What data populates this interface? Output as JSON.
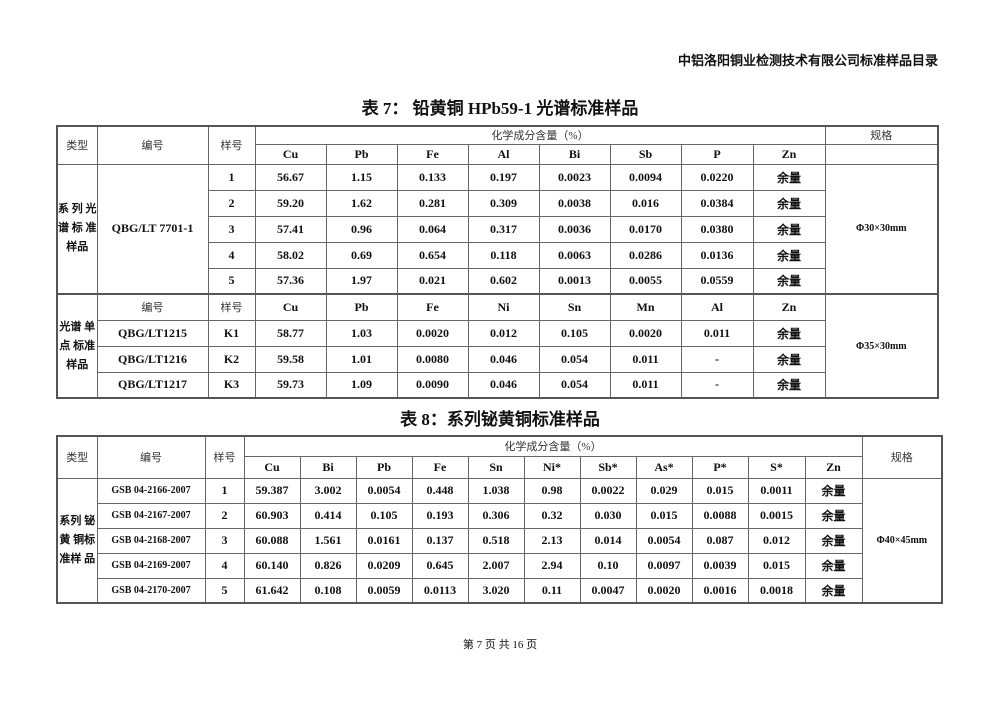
{
  "header": {
    "company": "中铝洛阳铜业检测技术有限公司标准样品目录"
  },
  "table7": {
    "title": "表 7：  铅黄铜 HPb59-1 光谱标准样品",
    "col_type": "类型",
    "col_code": "编号",
    "col_sample": "样号",
    "col_chem": "化学成分含量（%）",
    "col_spec": "规格",
    "section1": {
      "type": "系 列 光 谱 标 准 样品",
      "code": "QBG/LT 7701-1",
      "spec": "Φ30×30mm",
      "elements": [
        "Cu",
        "Pb",
        "Fe",
        "Al",
        "Bi",
        "Sb",
        "P",
        "Zn"
      ],
      "rows": [
        {
          "sample": "1",
          "values": [
            "56.67",
            "1.15",
            "0.133",
            "0.197",
            "0.0023",
            "0.0094",
            "0.0220",
            "余量"
          ]
        },
        {
          "sample": "2",
          "values": [
            "59.20",
            "1.62",
            "0.281",
            "0.309",
            "0.0038",
            "0.016",
            "0.0384",
            "余量"
          ]
        },
        {
          "sample": "3",
          "values": [
            "57.41",
            "0.96",
            "0.064",
            "0.317",
            "0.0036",
            "0.0170",
            "0.0380",
            "余量"
          ]
        },
        {
          "sample": "4",
          "values": [
            "58.02",
            "0.69",
            "0.654",
            "0.118",
            "0.0063",
            "0.0286",
            "0.0136",
            "余量"
          ]
        },
        {
          "sample": "5",
          "values": [
            "57.36",
            "1.97",
            "0.021",
            "0.602",
            "0.0013",
            "0.0055",
            "0.0559",
            "余量"
          ]
        }
      ]
    },
    "section2": {
      "type": "光谱 单点 标准 样品",
      "col_code": "编号",
      "col_sample": "样号",
      "spec": "Φ35×30mm",
      "elements": [
        "Cu",
        "Pb",
        "Fe",
        "Ni",
        "Sn",
        "Mn",
        "Al",
        "Zn"
      ],
      "rows": [
        {
          "code": "QBG/LT1215",
          "sample": "K1",
          "values": [
            "58.77",
            "1.03",
            "0.0020",
            "0.012",
            "0.105",
            "0.0020",
            "0.011",
            "余量"
          ]
        },
        {
          "code": "QBG/LT1216",
          "sample": "K2",
          "values": [
            "59.58",
            "1.01",
            "0.0080",
            "0.046",
            "0.054",
            "0.011",
            "-",
            "余量"
          ]
        },
        {
          "code": "QBG/LT1217",
          "sample": "K3",
          "values": [
            "59.73",
            "1.09",
            "0.0090",
            "0.046",
            "0.054",
            "0.011",
            "-",
            "余量"
          ]
        }
      ]
    }
  },
  "table8": {
    "title": "表 8：系列铋黄铜标准样品",
    "col_type": "类型",
    "col_code": "编号",
    "col_sample": "样号",
    "col_chem": "化学成分含量（%）",
    "col_spec": "规格",
    "type": "系列 铋黄 铜标 准样 品",
    "spec": "Φ40×45mm",
    "elements": [
      "Cu",
      "Bi",
      "Pb",
      "Fe",
      "Sn",
      "Ni*",
      "Sb*",
      "As*",
      "P*",
      "S*",
      "Zn"
    ],
    "rows": [
      {
        "code": "GSB 04-2166-2007",
        "sample": "1",
        "values": [
          "59.387",
          "3.002",
          "0.0054",
          "0.448",
          "1.038",
          "0.98",
          "0.0022",
          "0.029",
          "0.015",
          "0.0011",
          "余量"
        ]
      },
      {
        "code": "GSB 04-2167-2007",
        "sample": "2",
        "values": [
          "60.903",
          "0.414",
          "0.105",
          "0.193",
          "0.306",
          "0.32",
          "0.030",
          "0.015",
          "0.0088",
          "0.0015",
          "余量"
        ]
      },
      {
        "code": "GSB 04-2168-2007",
        "sample": "3",
        "values": [
          "60.088",
          "1.561",
          "0.0161",
          "0.137",
          "0.518",
          "2.13",
          "0.014",
          "0.0054",
          "0.087",
          "0.012",
          "余量"
        ]
      },
      {
        "code": "GSB 04-2169-2007",
        "sample": "4",
        "values": [
          "60.140",
          "0.826",
          "0.0209",
          "0.645",
          "2.007",
          "2.94",
          "0.10",
          "0.0097",
          "0.0039",
          "0.015",
          "余量"
        ]
      },
      {
        "code": "GSB 04-2170-2007",
        "sample": "5",
        "values": [
          "61.642",
          "0.108",
          "0.0059",
          "0.0113",
          "3.020",
          "0.11",
          "0.0047",
          "0.0020",
          "0.0016",
          "0.0018",
          "余量"
        ]
      }
    ]
  },
  "footer": {
    "page": "第 7 页 共 16 页"
  }
}
